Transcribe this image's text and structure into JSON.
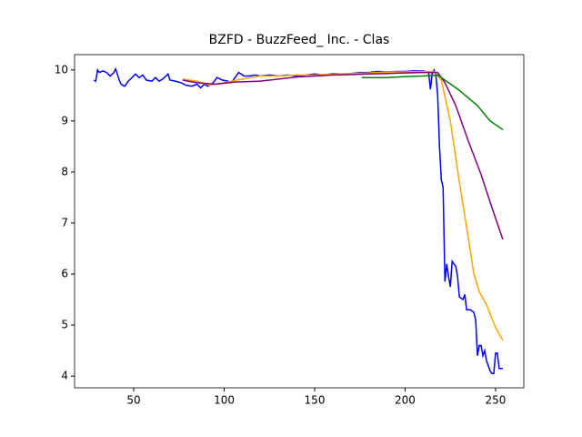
{
  "chart_data": {
    "type": "line",
    "title": "BZFD - BuzzFeed_ Inc. - Clas",
    "xlim": [
      17.3,
      265.6
    ],
    "ylim": [
      3.77,
      10.3
    ],
    "xticks": [
      50,
      100,
      150,
      200,
      250
    ],
    "yticks": [
      4,
      5,
      6,
      7,
      8,
      9,
      10
    ],
    "series": [
      {
        "color": "blue",
        "x": [
          28,
          29,
          30,
          31,
          33,
          35,
          37,
          39,
          40,
          42,
          43,
          45,
          47,
          49,
          51,
          53,
          55,
          57,
          60,
          62,
          64,
          66,
          69,
          70,
          73,
          76,
          79,
          82,
          85,
          87,
          89,
          91,
          94,
          96,
          99,
          102,
          104,
          106,
          108,
          111,
          114,
          117,
          120,
          125,
          130,
          135,
          140,
          145,
          150,
          155,
          160,
          165,
          170,
          175,
          180,
          185,
          190,
          195,
          200,
          205,
          210,
          213,
          214,
          215,
          216,
          217,
          218,
          219,
          220,
          221,
          222,
          223,
          224,
          225,
          226,
          227,
          228,
          229,
          230,
          232,
          233,
          234,
          236,
          238,
          239,
          240,
          241,
          242,
          243,
          244,
          245,
          246,
          247,
          248,
          249,
          250,
          251,
          252,
          254
        ],
        "values": [
          9.8,
          9.78,
          10.0,
          9.95,
          9.98,
          9.95,
          9.88,
          9.95,
          10.02,
          9.8,
          9.72,
          9.68,
          9.78,
          9.85,
          9.92,
          9.85,
          9.9,
          9.8,
          9.78,
          9.85,
          9.78,
          9.82,
          9.92,
          9.8,
          9.78,
          9.75,
          9.7,
          9.68,
          9.72,
          9.65,
          9.72,
          9.68,
          9.75,
          9.85,
          9.8,
          9.78,
          9.75,
          9.85,
          9.95,
          9.88,
          9.88,
          9.9,
          9.88,
          9.9,
          9.88,
          9.9,
          9.88,
          9.9,
          9.92,
          9.9,
          9.93,
          9.92,
          9.93,
          9.95,
          9.95,
          9.97,
          9.96,
          9.97,
          9.97,
          9.98,
          9.98,
          9.95,
          9.62,
          9.95,
          10.0,
          9.9,
          9.5,
          8.5,
          7.85,
          7.7,
          5.85,
          6.2,
          5.95,
          5.75,
          6.25,
          6.2,
          6.15,
          5.95,
          5.55,
          5.5,
          5.6,
          5.3,
          5.3,
          5.25,
          5.1,
          4.4,
          4.6,
          4.6,
          4.4,
          4.5,
          4.3,
          4.2,
          4.1,
          4.05,
          4.05,
          4.45,
          4.45,
          4.15,
          4.15
        ]
      },
      {
        "color": "orange",
        "x": [
          77,
          85,
          92,
          100,
          110,
          120,
          130,
          140,
          150,
          160,
          170,
          180,
          190,
          200,
          210,
          216,
          220,
          225,
          230,
          235,
          238,
          241,
          245,
          250,
          254
        ],
        "values": [
          9.82,
          9.78,
          9.7,
          9.75,
          9.82,
          9.88,
          9.88,
          9.9,
          9.9,
          9.92,
          9.93,
          9.94,
          9.96,
          9.96,
          9.97,
          9.97,
          9.8,
          9.0,
          7.8,
          6.7,
          6.0,
          5.65,
          5.4,
          4.95,
          4.7
        ]
      },
      {
        "color": "purple",
        "x": [
          77,
          85,
          95,
          105,
          120,
          130,
          140,
          150,
          160,
          170,
          180,
          190,
          200,
          210,
          218,
          222,
          228,
          235,
          242,
          248,
          254
        ],
        "values": [
          9.8,
          9.75,
          9.72,
          9.76,
          9.78,
          9.82,
          9.86,
          9.88,
          9.9,
          9.91,
          9.92,
          9.93,
          9.94,
          9.95,
          9.95,
          9.75,
          9.3,
          8.6,
          7.95,
          7.3,
          6.68
        ]
      },
      {
        "color": "green",
        "x": [
          176,
          190,
          200,
          210,
          218,
          222,
          230,
          240,
          247,
          254
        ],
        "values": [
          9.85,
          9.85,
          9.87,
          9.88,
          9.9,
          9.8,
          9.6,
          9.3,
          9.0,
          8.83
        ]
      }
    ]
  }
}
